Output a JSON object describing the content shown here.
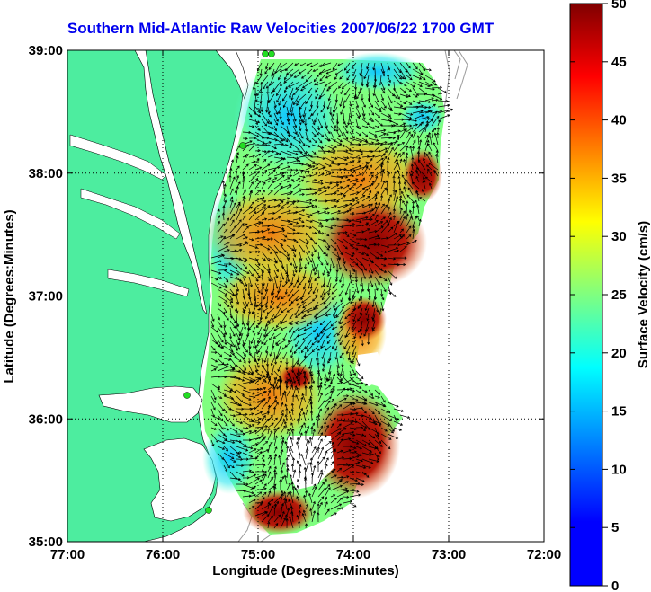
{
  "title": "Southern Mid-Atlantic Raw Velocities 2007/06/22 1700 GMT",
  "map": {
    "xlabel": "Longitude (Degrees:Minutes)",
    "ylabel": "Latitude (Degrees:Minutes)",
    "x_ticks": [
      "77:00",
      "76:00",
      "75:00",
      "74:00",
      "73:00",
      "72:00"
    ],
    "y_ticks": [
      "39:00",
      "38:00",
      "37:00",
      "36:00",
      "35:00"
    ],
    "lon_range": [
      -77,
      -72
    ],
    "lat_range": [
      35,
      39
    ],
    "grid": true,
    "land_color": "#4ded9f",
    "station_color": "#22dd22"
  },
  "colorbar": {
    "label": "Surface Velocity (cm/s)",
    "ticks": [
      "0",
      "5",
      "10",
      "15",
      "20",
      "25",
      "30",
      "35",
      "40",
      "45",
      "50"
    ],
    "range": [
      0,
      50
    ],
    "colormap": "jet",
    "location": "right"
  }
}
